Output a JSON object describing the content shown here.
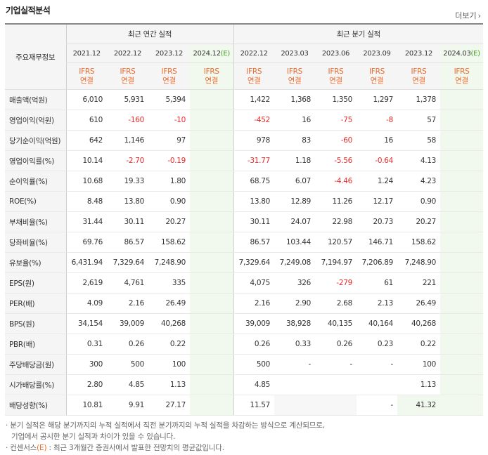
{
  "title": "기업실적분석",
  "more": "더보기",
  "header": {
    "row_label": "주요재무정보",
    "annual_label": "최근 연간 실적",
    "quarter_label": "최근 분기 실적",
    "annual_periods": [
      "2021.12",
      "2022.12",
      "2023.12",
      "2024.12"
    ],
    "quarter_periods": [
      "2022.12",
      "2023.03",
      "2023.06",
      "2023.09",
      "2023.12",
      "2024.03"
    ],
    "est_suffix": "(E)",
    "ifrs": "IFRS",
    "ifrs2": "연결"
  },
  "rows": [
    {
      "label": "매출액(억원)",
      "a": [
        "6,010",
        "5,931",
        "5,394",
        ""
      ],
      "q": [
        "1,422",
        "1,368",
        "1,350",
        "1,297",
        "1,378",
        ""
      ]
    },
    {
      "label": "영업이익(억원)",
      "a": [
        "610",
        "-160",
        "-10",
        ""
      ],
      "q": [
        "-452",
        "16",
        "-75",
        "-8",
        "57",
        ""
      ]
    },
    {
      "label": "당기순이익(억원)",
      "a": [
        "642",
        "1,146",
        "97",
        ""
      ],
      "q": [
        "978",
        "83",
        "-60",
        "16",
        "58",
        ""
      ]
    },
    {
      "label": "영업이익률(%)",
      "a": [
        "10.14",
        "-2.70",
        "-0.19",
        ""
      ],
      "q": [
        "-31.77",
        "1.18",
        "-5.56",
        "-0.64",
        "4.13",
        ""
      ]
    },
    {
      "label": "순이익률(%)",
      "a": [
        "10.68",
        "19.33",
        "1.80",
        ""
      ],
      "q": [
        "68.75",
        "6.07",
        "-4.46",
        "1.24",
        "4.23",
        ""
      ]
    },
    {
      "label": "ROE(%)",
      "a": [
        "8.48",
        "13.80",
        "0.90",
        ""
      ],
      "q": [
        "13.80",
        "12.89",
        "11.26",
        "12.17",
        "0.90",
        ""
      ]
    },
    {
      "label": "부채비율(%)",
      "a": [
        "31.44",
        "30.11",
        "20.27",
        ""
      ],
      "q": [
        "30.11",
        "24.07",
        "22.98",
        "20.73",
        "20.27",
        ""
      ]
    },
    {
      "label": "당좌비율(%)",
      "a": [
        "69.76",
        "86.57",
        "158.62",
        ""
      ],
      "q": [
        "86.57",
        "103.44",
        "120.57",
        "146.71",
        "158.62",
        ""
      ]
    },
    {
      "label": "유보율(%)",
      "a": [
        "6,431.94",
        "7,329.64",
        "7,248.90",
        ""
      ],
      "q": [
        "7,329.64",
        "7,249.08",
        "7,194.97",
        "7,206.89",
        "7,248.90",
        ""
      ]
    },
    {
      "label": "EPS(원)",
      "a": [
        "2,619",
        "4,761",
        "335",
        ""
      ],
      "q": [
        "4,075",
        "326",
        "-279",
        "61",
        "221",
        ""
      ]
    },
    {
      "label": "PER(배)",
      "a": [
        "4.09",
        "2.16",
        "26.49",
        ""
      ],
      "q": [
        "2.16",
        "2.90",
        "2.68",
        "2.13",
        "26.49",
        ""
      ]
    },
    {
      "label": "BPS(원)",
      "a": [
        "34,154",
        "39,009",
        "40,268",
        ""
      ],
      "q": [
        "39,009",
        "38,928",
        "40,135",
        "40,164",
        "40,268",
        ""
      ]
    },
    {
      "label": "PBR(배)",
      "a": [
        "0.31",
        "0.26",
        "0.22",
        ""
      ],
      "q": [
        "0.26",
        "0.33",
        "0.26",
        "0.23",
        "0.22",
        ""
      ]
    },
    {
      "label": "주당배당금(원)",
      "a": [
        "300",
        "500",
        "100",
        ""
      ],
      "q": [
        "500",
        "-",
        "-",
        "-",
        "100",
        ""
      ]
    },
    {
      "label": "시가배당률(%)",
      "a": [
        "2.80",
        "4.85",
        "1.13",
        ""
      ],
      "q": [
        "4.85",
        "",
        "",
        "",
        "1.13",
        ""
      ]
    },
    {
      "label": "배당성향(%)",
      "a": [
        "10.81",
        "9.91",
        "27.17",
        ""
      ],
      "q": [
        "11.57",
        "",
        "",
        "-",
        "41.32",
        ""
      ]
    }
  ],
  "notes": {
    "line1": "· 분기 실적은 해당 분기까지의 누적 실적에서 직전 분기까지의 누적 실적을 차감하는 방식으로 계산되므로,",
    "line2": "기업에서 공시한 분기 실적과 차이가 있을 수 있습니다.",
    "line3a": "· 컨센서스",
    "line3e": "(E)",
    "line3b": ": 최근 3개월간 증권사에서 발표한 전망치의 평균값입니다."
  }
}
